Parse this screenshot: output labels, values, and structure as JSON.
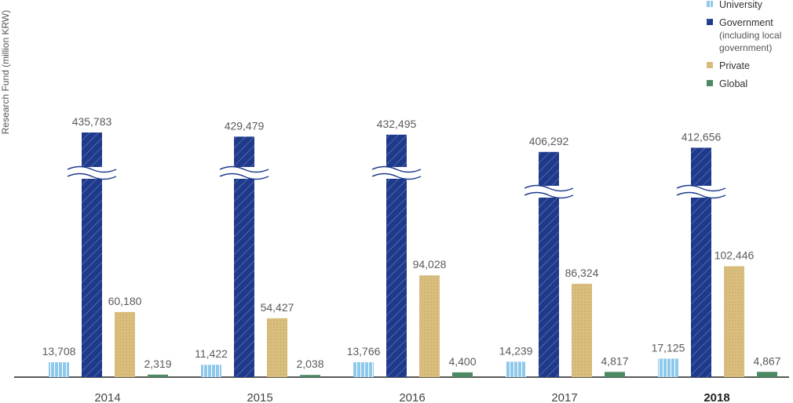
{
  "chart_data": {
    "type": "bar",
    "ylabel": "Research Fund (million KRW)",
    "categories": [
      "2014",
      "2015",
      "2016",
      "2017",
      "2018"
    ],
    "bold_category": "2018",
    "axis_break": true,
    "series": [
      {
        "name": "University",
        "values": [
          13708,
          11422,
          13766,
          14239,
          17125
        ],
        "labels": [
          "13,708",
          "11,422",
          "13,766",
          "14,239",
          "17,125"
        ],
        "color": "#8ec9ec",
        "pattern": "vertical-lines"
      },
      {
        "name": "Government",
        "name_sub": [
          "(including local",
          "government)"
        ],
        "values": [
          435783,
          429479,
          432495,
          406292,
          412656
        ],
        "labels": [
          "435,783",
          "429,479",
          "432,495",
          "406,292",
          "412,656"
        ],
        "color": "#1f3a8a",
        "pattern": "diagonal-lines"
      },
      {
        "name": "Private",
        "values": [
          60180,
          54427,
          94028,
          86324,
          102446
        ],
        "labels": [
          "60,180",
          "54,427",
          "94,028",
          "86,324",
          "102,446"
        ],
        "color": "#d9be7e",
        "pattern": "dots"
      },
      {
        "name": "Global",
        "values": [
          2319,
          2038,
          4400,
          4817,
          4867
        ],
        "labels": [
          "2,319",
          "2,038",
          "4,400",
          "4,817",
          "4,867"
        ],
        "color": "#4c8a64",
        "pattern": "solid"
      }
    ]
  }
}
